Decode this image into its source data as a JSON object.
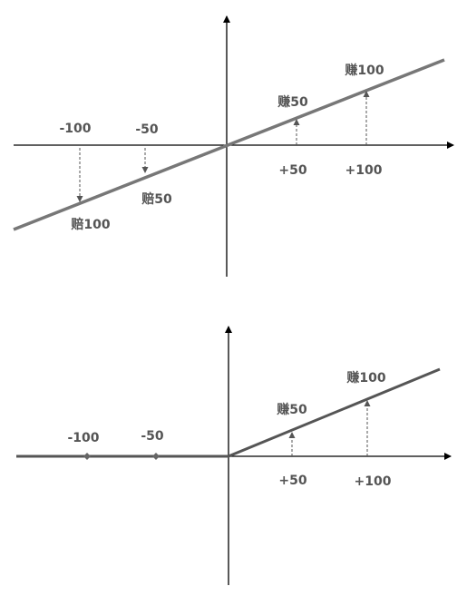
{
  "panels": [
    {
      "x_labels": [
        "-100",
        "-50",
        "+50",
        "+100"
      ],
      "annotations": [
        "赔100",
        "赔50",
        "赚50",
        "赚100"
      ]
    },
    {
      "x_labels": [
        "-100",
        "-50",
        "+50",
        "+100"
      ],
      "annotations": [
        "赚50",
        "赚100"
      ]
    }
  ]
}
